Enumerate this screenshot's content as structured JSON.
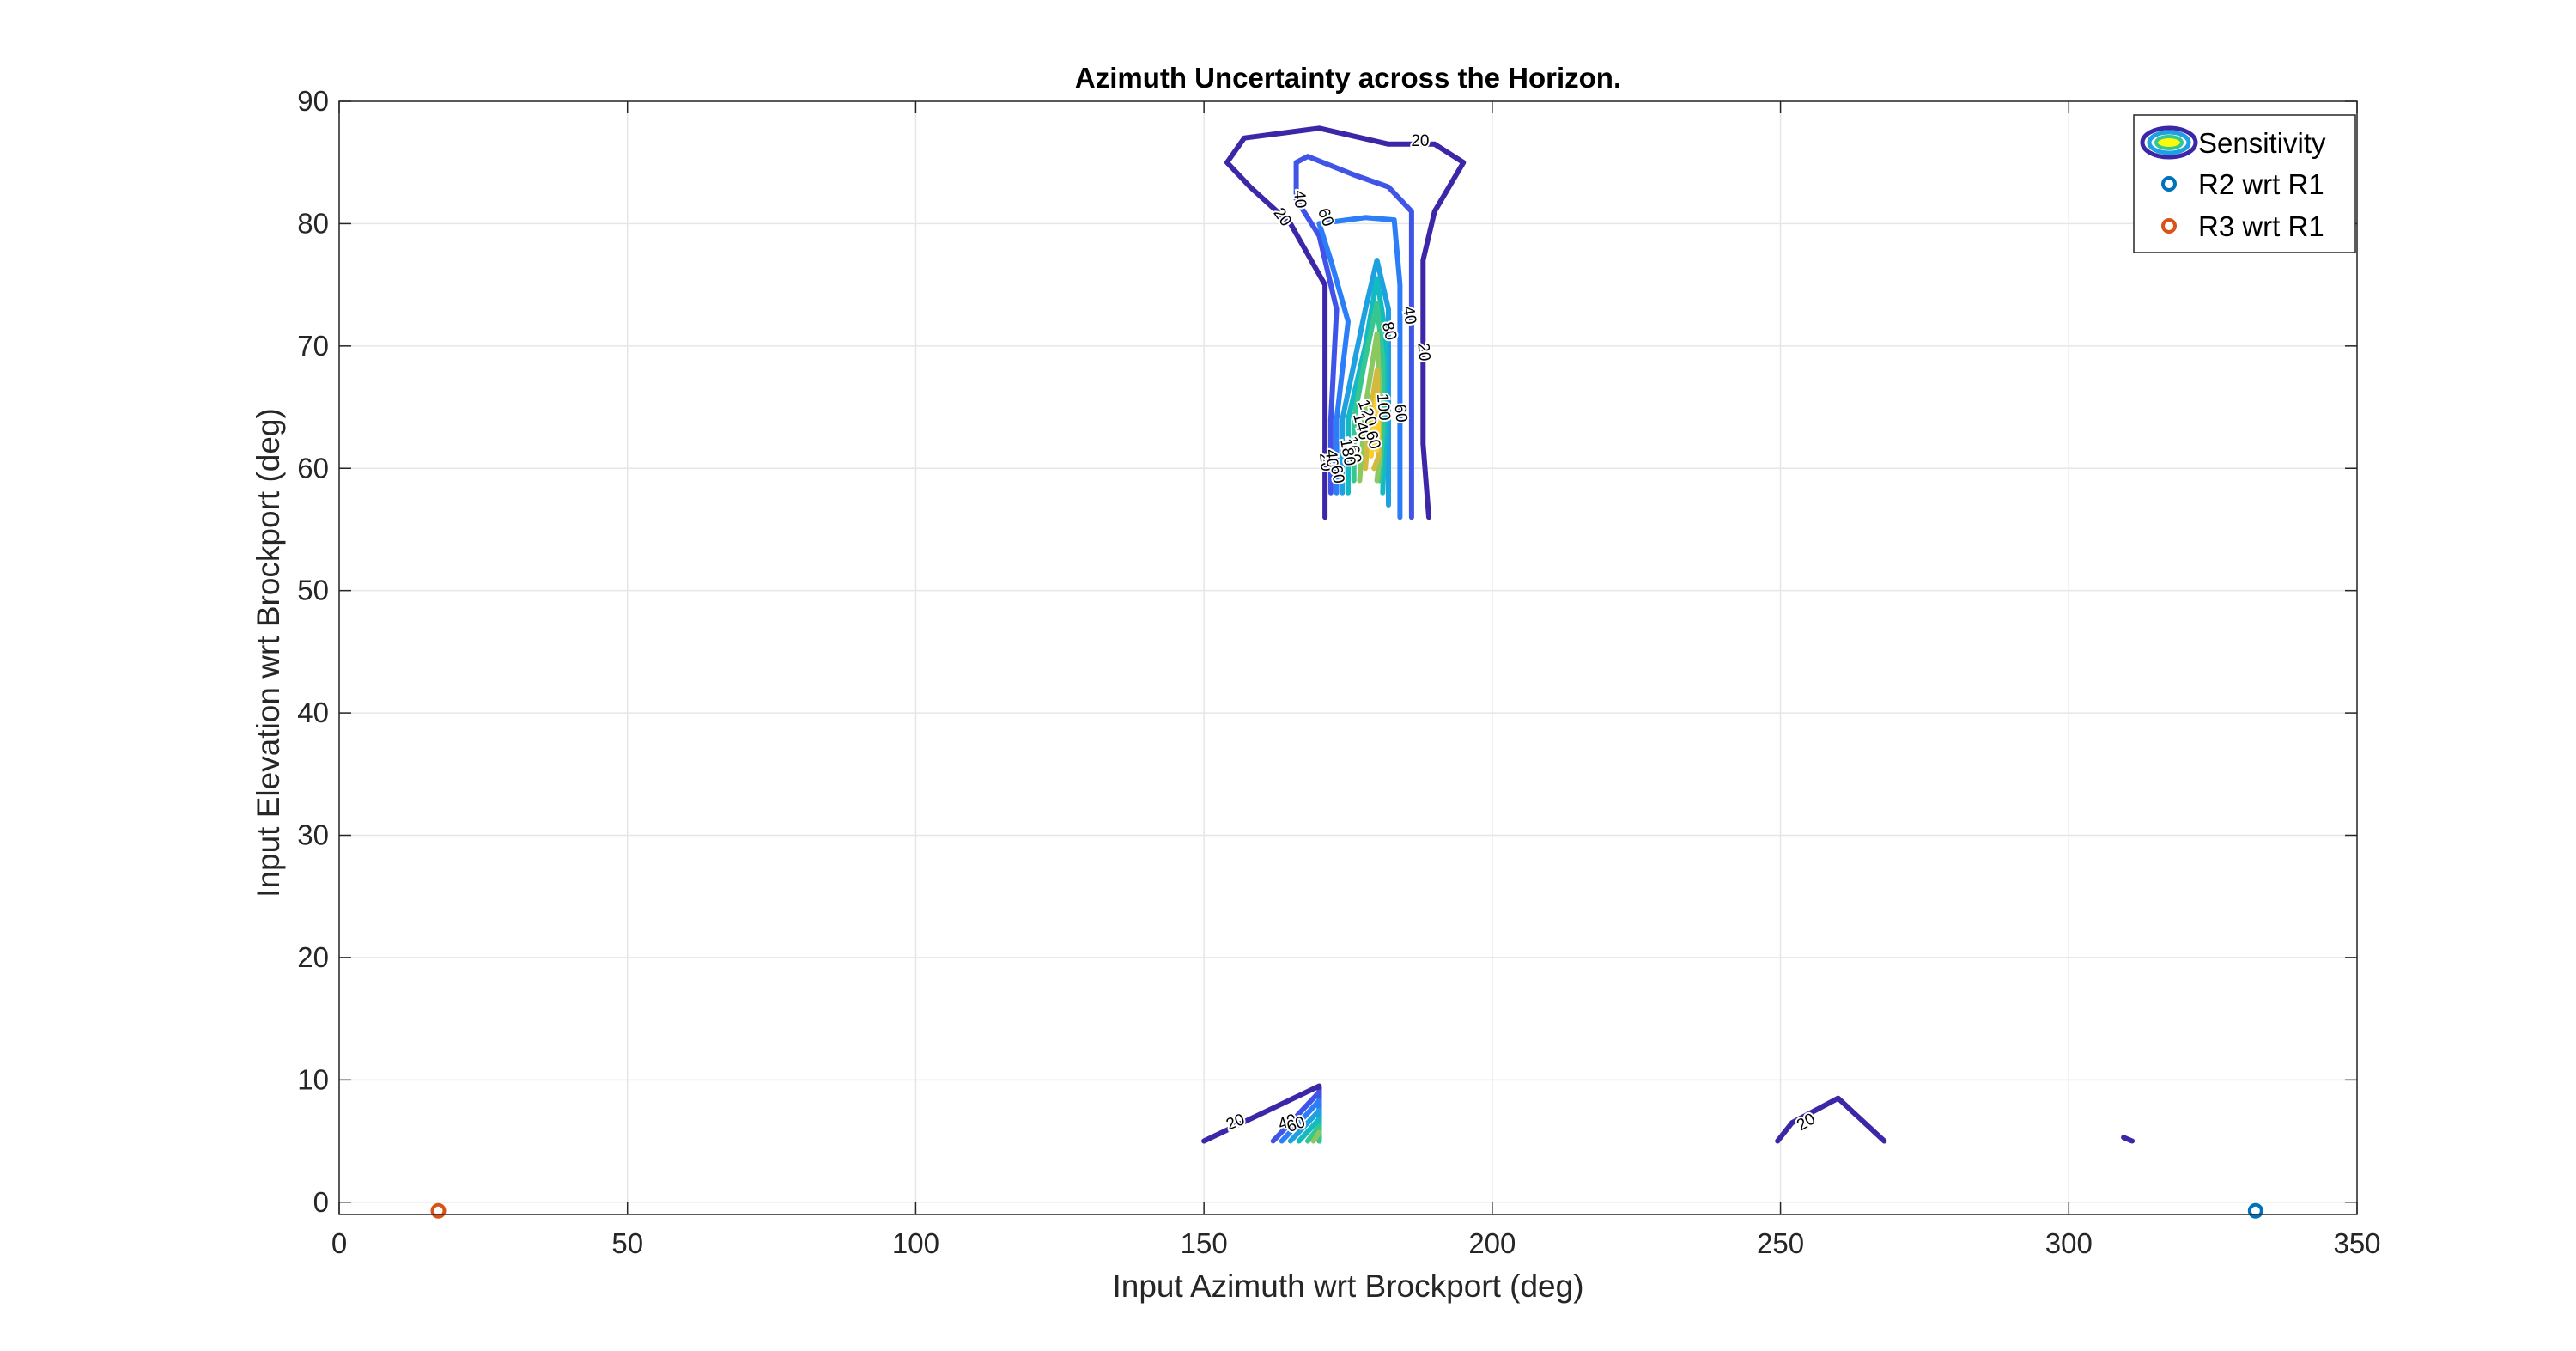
{
  "chart_data": {
    "type": "contour",
    "title": "Azimuth Uncertainty across the Horizon.",
    "xlabel": "Input Azimuth wrt Brockport (deg)",
    "ylabel": "Input Elevation wrt Brockport (deg)",
    "xlim": [
      0,
      350
    ],
    "ylim": [
      -1,
      90
    ],
    "xticks": [
      0,
      50,
      100,
      150,
      200,
      250,
      300,
      350
    ],
    "yticks": [
      0,
      10,
      20,
      30,
      40,
      50,
      60,
      70,
      80,
      90
    ],
    "grid": true,
    "legend": {
      "position": "top-right",
      "entries": [
        {
          "label": "Sensitivity",
          "kind": "contour"
        },
        {
          "label": "R2 wrt R1",
          "kind": "marker",
          "color": "#0072BD"
        },
        {
          "label": "R3 wrt R1",
          "kind": "marker",
          "color": "#D95319"
        }
      ]
    },
    "contour_colors": {
      "20": "#3E26A8",
      "40": "#4154E8",
      "60": "#2C7DF8",
      "80": "#1FA0E0",
      "100": "#14BAC1",
      "120": "#36C690",
      "140": "#8CC860",
      "160": "#D2BA3E",
      "180": "#FBCE2E"
    },
    "contours": [
      {
        "level": 20,
        "points": [
          [
            171,
            56
          ],
          [
            171,
            61
          ],
          [
            171,
            70
          ],
          [
            171,
            75
          ],
          [
            165,
            80
          ],
          [
            158,
            83
          ],
          [
            154,
            85
          ],
          [
            157,
            87
          ],
          [
            170,
            87.8
          ],
          [
            182,
            86.5
          ],
          [
            190,
            86.5
          ],
          [
            195,
            85
          ],
          [
            190,
            81
          ],
          [
            188,
            77
          ],
          [
            188,
            70
          ],
          [
            188,
            62
          ],
          [
            189,
            56
          ]
        ]
      },
      {
        "level": 40,
        "points": [
          [
            172,
            58
          ],
          [
            172,
            64
          ],
          [
            173,
            73
          ],
          [
            170,
            79
          ],
          [
            166,
            82
          ],
          [
            166,
            85
          ],
          [
            168,
            85.5
          ],
          [
            176,
            84
          ],
          [
            182,
            83
          ],
          [
            186,
            81
          ],
          [
            186,
            77
          ],
          [
            186,
            70
          ],
          [
            186,
            62
          ],
          [
            186,
            56
          ]
        ]
      },
      {
        "level": 60,
        "points": [
          [
            173,
            58
          ],
          [
            173,
            64
          ],
          [
            175,
            72
          ],
          [
            172,
            77
          ],
          [
            170,
            80
          ],
          [
            178,
            80.5
          ],
          [
            183,
            80.3
          ],
          [
            184,
            75
          ],
          [
            184,
            68
          ],
          [
            184,
            62
          ],
          [
            184,
            56
          ]
        ]
      },
      {
        "level": 80,
        "points": [
          [
            174,
            58
          ],
          [
            174,
            64
          ],
          [
            178,
            73
          ],
          [
            180,
            77
          ],
          [
            182,
            73
          ],
          [
            182,
            66
          ],
          [
            182,
            57
          ]
        ]
      },
      {
        "level": 100,
        "points": [
          [
            175,
            58
          ],
          [
            175,
            64
          ],
          [
            178,
            70
          ],
          [
            180,
            75.5
          ],
          [
            181.5,
            71
          ],
          [
            181.5,
            64
          ],
          [
            181,
            58
          ]
        ]
      },
      {
        "level": 120,
        "points": [
          [
            176,
            59
          ],
          [
            176,
            64
          ],
          [
            178,
            69
          ],
          [
            180,
            73.5
          ],
          [
            181,
            69
          ],
          [
            181,
            63
          ],
          [
            180.5,
            59
          ]
        ]
      },
      {
        "level": 140,
        "points": [
          [
            177,
            59
          ],
          [
            178,
            65
          ],
          [
            180,
            71
          ],
          [
            180.5,
            66
          ],
          [
            180.5,
            61
          ],
          [
            180,
            59
          ]
        ]
      },
      {
        "level": 160,
        "points": [
          [
            178,
            60
          ],
          [
            179,
            65
          ],
          [
            180,
            68
          ],
          [
            180.3,
            64
          ],
          [
            180.3,
            61
          ],
          [
            179.5,
            60
          ]
        ]
      },
      {
        "level": 180,
        "points": [
          [
            179,
            61
          ],
          [
            179.5,
            64
          ],
          [
            180,
            66
          ],
          [
            180.2,
            63
          ],
          [
            180,
            61.5
          ]
        ]
      },
      {
        "level": 20,
        "points": [
          [
            150,
            5
          ],
          [
            170,
            9.5
          ],
          [
            170,
            5
          ]
        ]
      },
      {
        "level": 40,
        "points": [
          [
            162,
            5
          ],
          [
            170,
            9
          ],
          [
            170,
            5
          ]
        ]
      },
      {
        "level": 60,
        "points": [
          [
            163.5,
            5
          ],
          [
            170,
            8.3
          ],
          [
            170,
            5
          ]
        ]
      },
      {
        "level": 80,
        "points": [
          [
            165,
            5
          ],
          [
            170,
            7.5
          ],
          [
            170,
            5
          ]
        ]
      },
      {
        "level": 100,
        "points": [
          [
            166.5,
            5
          ],
          [
            170,
            6.8
          ],
          [
            170,
            5
          ]
        ]
      },
      {
        "level": 120,
        "points": [
          [
            168,
            5
          ],
          [
            170,
            6.2
          ],
          [
            170,
            5
          ]
        ]
      },
      {
        "level": 140,
        "points": [
          [
            169,
            5
          ],
          [
            170,
            5.7
          ]
        ]
      },
      {
        "level": 20,
        "points": [
          [
            249.5,
            5
          ],
          [
            252,
            6.5
          ],
          [
            260,
            8.5
          ],
          [
            268,
            5
          ]
        ]
      },
      {
        "level": 20,
        "points": [
          [
            309.5,
            5.3
          ],
          [
            311,
            5
          ]
        ]
      }
    ],
    "contour_labels": [
      {
        "text": "20",
        "x": 187.5,
        "y": 86.7,
        "angle": 0
      },
      {
        "text": "20",
        "x": 163.5,
        "y": 80.5,
        "angle": 55
      },
      {
        "text": "40",
        "x": 166.5,
        "y": 82.0,
        "angle": 85
      },
      {
        "text": "60",
        "x": 171,
        "y": 80.5,
        "angle": 70
      },
      {
        "text": "40",
        "x": 185.5,
        "y": 72.5,
        "angle": 80
      },
      {
        "text": "20",
        "x": 188,
        "y": 69.5,
        "angle": 85
      },
      {
        "text": "80",
        "x": 182,
        "y": 71.2,
        "angle": 75
      },
      {
        "text": "60",
        "x": 184,
        "y": 64.5,
        "angle": 85
      },
      {
        "text": "100",
        "x": 181,
        "y": 65.0,
        "angle": 85
      },
      {
        "text": "120",
        "x": 178.2,
        "y": 64.5,
        "angle": 70
      },
      {
        "text": "140",
        "x": 177.2,
        "y": 63.4,
        "angle": 75
      },
      {
        "text": "160",
        "x": 175.8,
        "y": 61.5,
        "angle": 80
      },
      {
        "text": "180",
        "x": 174.8,
        "y": 61.3,
        "angle": 80
      },
      {
        "text": "20",
        "x": 171,
        "y": 60.5,
        "angle": 85
      },
      {
        "text": "40",
        "x": 172,
        "y": 60.8,
        "angle": 85
      },
      {
        "text": "60",
        "x": 173,
        "y": 59.5,
        "angle": 80
      },
      {
        "text": "60",
        "x": 179.2,
        "y": 62.3,
        "angle": 75
      },
      {
        "text": "20",
        "x": 155.5,
        "y": 6.5,
        "angle": -22
      },
      {
        "text": "40",
        "x": 164.5,
        "y": 6.5,
        "angle": -20
      },
      {
        "text": "60",
        "x": 166,
        "y": 6.3,
        "angle": -20
      },
      {
        "text": "20",
        "x": 254.5,
        "y": 6.5,
        "angle": -30
      }
    ],
    "points": [
      {
        "name": "R2 wrt R1",
        "x": 332.4,
        "y": -0.7,
        "color": "#0072BD"
      },
      {
        "name": "R3 wrt R1",
        "x": 17.2,
        "y": -0.7,
        "color": "#D95319"
      }
    ]
  }
}
